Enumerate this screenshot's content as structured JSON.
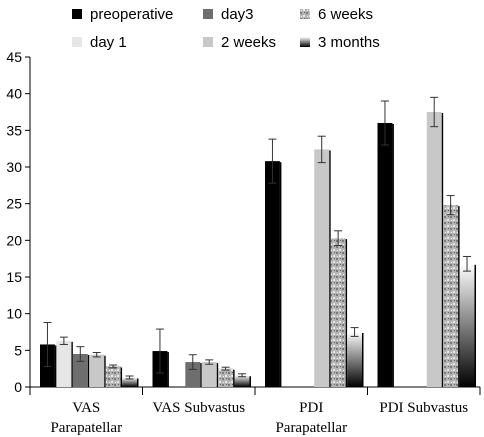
{
  "chart_data": {
    "type": "bar",
    "categories": [
      [
        "VAS",
        "Parapatellar"
      ],
      [
        "VAS Subvastus"
      ],
      [
        "PDI",
        "Parapatellar"
      ],
      [
        "PDI Subvastus"
      ]
    ],
    "series": [
      {
        "name": "preoperative",
        "color": "#000000",
        "values": [
          5.8,
          4.9,
          30.8,
          36.0
        ],
        "errors": [
          3.0,
          3.0,
          3.0,
          3.0
        ]
      },
      {
        "name": "day 1",
        "color": "#e6e6e6",
        "values": [
          6.3,
          null,
          null,
          null
        ],
        "errors": [
          0.5,
          null,
          null,
          null
        ]
      },
      {
        "name": "day3",
        "color": "#6e6e6e",
        "values": [
          4.5,
          3.4,
          null,
          null
        ],
        "errors": [
          1.0,
          1.0,
          null,
          null
        ]
      },
      {
        "name": "2 weeks",
        "color": "#c8c8c8",
        "values": [
          4.4,
          3.4,
          32.4,
          37.5
        ],
        "errors": [
          0.3,
          0.3,
          1.8,
          2.0
        ]
      },
      {
        "name": "6 weeks",
        "color": "#a8a8a8",
        "pattern": "speckle",
        "values": [
          2.8,
          2.5,
          20.3,
          24.8
        ],
        "errors": [
          0.2,
          0.2,
          1.0,
          1.3
        ]
      },
      {
        "name": "3 months",
        "color": "#000000",
        "pattern": "gradient",
        "values": [
          1.3,
          1.6,
          7.5,
          16.8
        ],
        "errors": [
          0.2,
          0.2,
          0.6,
          1.0
        ]
      }
    ],
    "ylim": [
      0,
      45
    ],
    "yticks": [
      0,
      5,
      10,
      15,
      20,
      25,
      30,
      35,
      40,
      45
    ],
    "grid": false,
    "legend_position": "top"
  }
}
